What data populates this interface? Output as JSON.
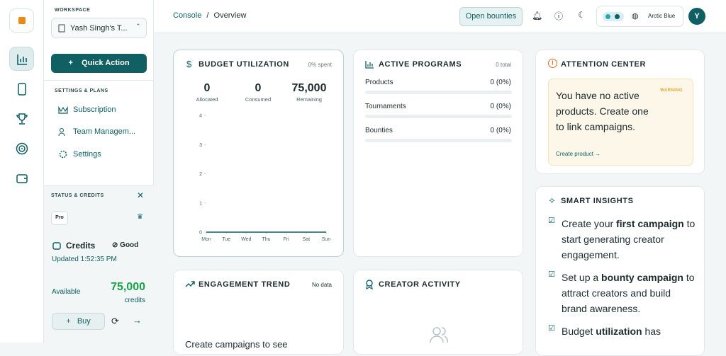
{
  "sidebar": {
    "workspace_label": "WORKSPACE",
    "workspace_name": "Yash Singh's T...",
    "quick_action": "Quick Action",
    "settings_label": "SETTINGS & PLANS",
    "nav": [
      "Subscription",
      "Team Managem...",
      "Settings"
    ],
    "status_label": "STATUS & CREDITS",
    "plan": "Pro",
    "credits_title": "Credits",
    "credits_status": "Good",
    "updated": "Updated 1:52:35 PM",
    "available_label": "Available",
    "available_value": "75,000",
    "available_unit": "credits",
    "buy": "Buy"
  },
  "header": {
    "breadcrumb": [
      "Console",
      "/",
      "Overview"
    ],
    "open_bounties": "Open bounties",
    "theme": "Arctic Blue",
    "avatar": "Y"
  },
  "budget": {
    "title": "BUDGET UTILIZATION",
    "badge": "0% spent",
    "stats": [
      {
        "value": "0",
        "label": "Allocated"
      },
      {
        "value": "0",
        "label": "Consumed"
      },
      {
        "value": "75,000",
        "label": "Remaining"
      }
    ],
    "chart": {
      "type": "line",
      "categories": [
        "Mon",
        "Tue",
        "Wed",
        "Thu",
        "Fri",
        "Sat",
        "Sun"
      ],
      "values": [
        0,
        0,
        0,
        0,
        0,
        0,
        0
      ],
      "ylim": [
        0,
        4
      ],
      "yticks": [
        0,
        1,
        2,
        3,
        4
      ],
      "color": "#0f5f63"
    }
  },
  "programs": {
    "title": "ACTIVE PROGRAMS",
    "badge": "0 total",
    "rows": [
      {
        "name": "Products",
        "value": "0 (0%)"
      },
      {
        "name": "Tournaments",
        "value": "0 (0%)"
      },
      {
        "name": "Bounties",
        "value": "0 (0%)"
      }
    ]
  },
  "attention": {
    "title": "ATTENTION CENTER",
    "tag": "WARNING",
    "message": "You have no active products. Create one to link campaigns.",
    "link": "Create product →"
  },
  "insights": {
    "title": "SMART INSIGHTS",
    "items": [
      {
        "before": "Create your ",
        "bold": "first campaign",
        "after": " to start generating creator engagement."
      },
      {
        "before": "Set up a ",
        "bold": "bounty campaign",
        "after": " to attract creators and build brand awareness."
      },
      {
        "before": "Budget ",
        "bold": "utilization",
        "after": " has"
      }
    ]
  },
  "engagement": {
    "title": "ENGAGEMENT TREND",
    "badge": "No data",
    "message": "Create campaigns to see"
  },
  "activity": {
    "title": "CREATOR ACTIVITY"
  }
}
